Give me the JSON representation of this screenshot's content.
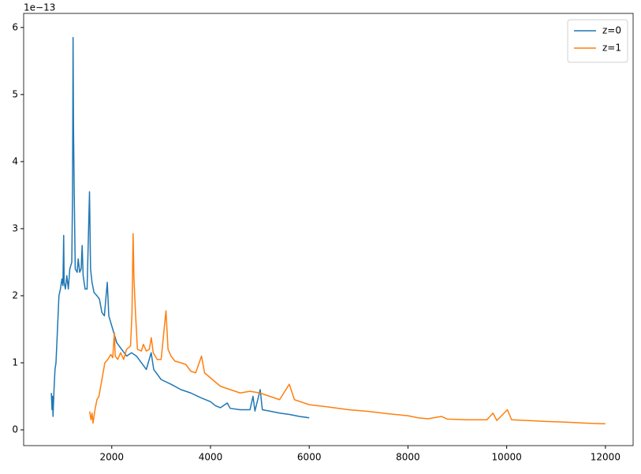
{
  "chart_data": {
    "type": "line",
    "offset_text": "1e−13",
    "xlim": [
      215,
      12561
    ],
    "ylim": [
      -0.235,
      6.21
    ],
    "xticks": [
      2000,
      4000,
      6000,
      8000,
      10000,
      12000
    ],
    "yticks": [
      0,
      1,
      2,
      3,
      4,
      5,
      6
    ],
    "grid": false,
    "legend": "upper-right",
    "series": [
      {
        "name": "z=0",
        "color": "#1f77b4",
        "x": [
          776,
          790,
          800,
          810,
          830,
          850,
          870,
          900,
          930,
          960,
          990,
          1010,
          1026,
          1035,
          1060,
          1090,
          1120,
          1150,
          1190,
          1205,
          1216,
          1225,
          1240,
          1260,
          1300,
          1320,
          1350,
          1380,
          1400,
          1420,
          1460,
          1500,
          1549,
          1570,
          1600,
          1640,
          1700,
          1750,
          1800,
          1850,
          1909,
          1940,
          2000,
          2100,
          2200,
          2300,
          2400,
          2500,
          2600,
          2700,
          2798,
          2850,
          3000,
          3200,
          3400,
          3600,
          3800,
          4000,
          4102,
          4200,
          4340,
          4400,
          4600,
          4800,
          4861,
          4900,
          5007,
          5050,
          5200,
          5400,
          5600,
          5800,
          6000
        ],
        "values": [
          0.55,
          0.3,
          0.5,
          0.2,
          0.6,
          0.9,
          1.0,
          1.5,
          2.0,
          2.1,
          2.25,
          2.15,
          2.9,
          2.2,
          2.1,
          2.3,
          2.1,
          2.4,
          2.5,
          3.5,
          5.85,
          4.5,
          3.5,
          2.4,
          2.35,
          2.55,
          2.35,
          2.4,
          2.75,
          2.3,
          2.1,
          2.1,
          3.55,
          2.4,
          2.2,
          2.05,
          2.0,
          1.95,
          1.75,
          1.7,
          2.2,
          1.7,
          1.55,
          1.3,
          1.2,
          1.1,
          1.15,
          1.1,
          1.0,
          0.9,
          1.15,
          0.9,
          0.75,
          0.68,
          0.6,
          0.55,
          0.48,
          0.42,
          0.36,
          0.33,
          0.4,
          0.32,
          0.3,
          0.3,
          0.5,
          0.28,
          0.6,
          0.3,
          0.28,
          0.25,
          0.23,
          0.2,
          0.18
        ]
      },
      {
        "name": "z=1",
        "color": "#ff7f0e",
        "x": [
          1552,
          1580,
          1600,
          1620,
          1660,
          1700,
          1740,
          1800,
          1860,
          1920,
          1980,
          2020,
          2052,
          2070,
          2120,
          2180,
          2240,
          2300,
          2380,
          2410,
          2432,
          2450,
          2480,
          2520,
          2600,
          2640,
          2700,
          2760,
          2800,
          2840,
          2920,
          3000,
          3098,
          3140,
          3200,
          3280,
          3400,
          3500,
          3600,
          3700,
          3818,
          3880,
          4000,
          4200,
          4400,
          4600,
          4800,
          5000,
          5200,
          5400,
          5596,
          5700,
          6000,
          6400,
          6800,
          7200,
          7600,
          8000,
          8204,
          8400,
          8680,
          8800,
          9200,
          9600,
          9722,
          9800,
          10014,
          10100,
          10400,
          10800,
          11200,
          11600,
          12000
        ],
        "values": [
          0.275,
          0.15,
          0.25,
          0.1,
          0.3,
          0.45,
          0.5,
          0.75,
          1.0,
          1.05,
          1.125,
          1.075,
          1.45,
          1.1,
          1.05,
          1.15,
          1.05,
          1.2,
          1.25,
          1.75,
          2.925,
          2.25,
          1.75,
          1.2,
          1.175,
          1.275,
          1.175,
          1.2,
          1.375,
          1.15,
          1.05,
          1.05,
          1.775,
          1.2,
          1.1,
          1.025,
          1.0,
          0.975,
          0.875,
          0.85,
          1.1,
          0.85,
          0.775,
          0.65,
          0.6,
          0.55,
          0.575,
          0.55,
          0.5,
          0.45,
          0.68,
          0.45,
          0.375,
          0.34,
          0.3,
          0.275,
          0.24,
          0.21,
          0.18,
          0.165,
          0.2,
          0.16,
          0.15,
          0.15,
          0.25,
          0.14,
          0.3,
          0.15,
          0.14,
          0.125,
          0.115,
          0.1,
          0.09
        ]
      }
    ]
  }
}
